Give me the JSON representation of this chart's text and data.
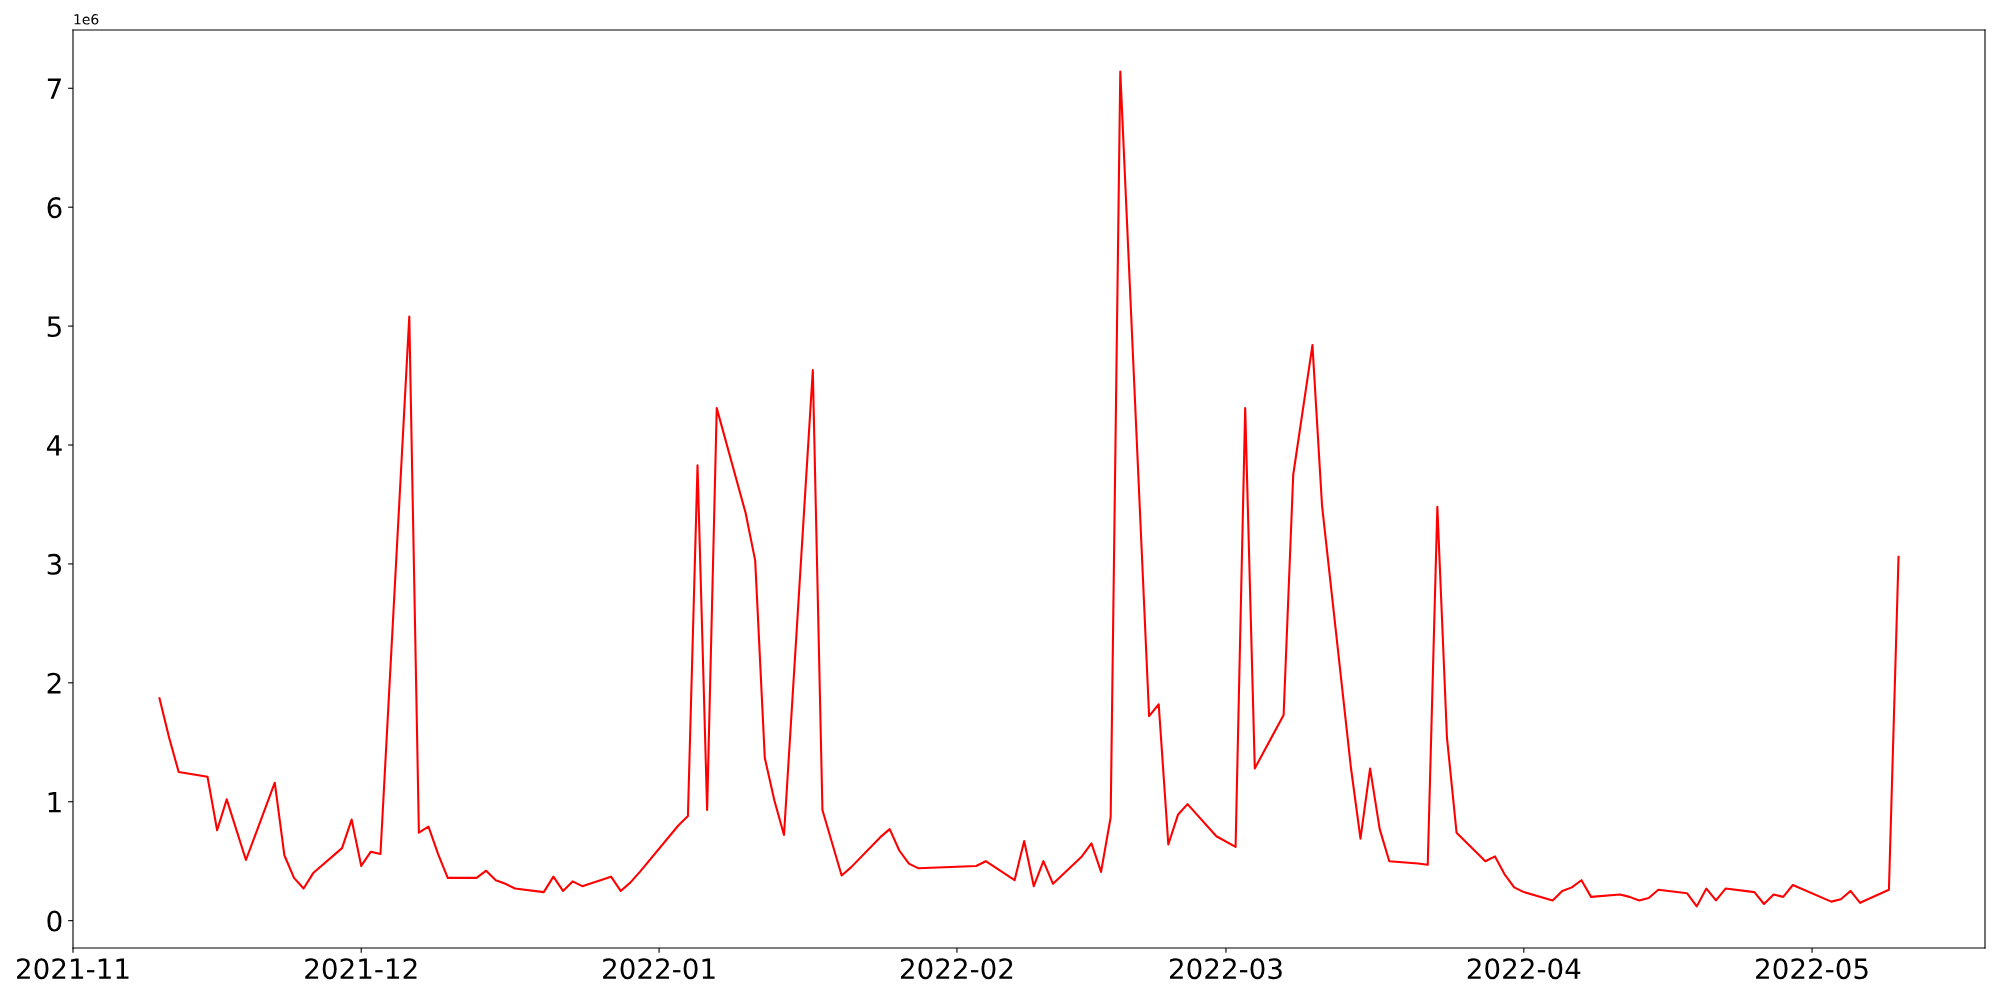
{
  "chart_data": {
    "type": "line",
    "annotations": [
      "1e6"
    ],
    "x": [
      "2021-11-10",
      "2021-11-11",
      "2021-11-12",
      "2021-11-15",
      "2021-11-16",
      "2021-11-17",
      "2021-11-19",
      "2021-11-22",
      "2021-11-23",
      "2021-11-24",
      "2021-11-25",
      "2021-11-26",
      "2021-11-29",
      "2021-11-30",
      "2021-12-01",
      "2021-12-02",
      "2021-12-03",
      "2021-12-06",
      "2021-12-07",
      "2021-12-08",
      "2021-12-09",
      "2021-12-10",
      "2021-12-13",
      "2021-12-14",
      "2021-12-15",
      "2021-12-16",
      "2021-12-17",
      "2021-12-20",
      "2021-12-21",
      "2021-12-22",
      "2021-12-23",
      "2021-12-24",
      "2021-12-27",
      "2021-12-28",
      "2021-12-29",
      "2021-12-30",
      "2022-01-03",
      "2022-01-04",
      "2022-01-05",
      "2022-01-06",
      "2022-01-07",
      "2022-01-10",
      "2022-01-11",
      "2022-01-12",
      "2022-01-13",
      "2022-01-14",
      "2022-01-17",
      "2022-01-18",
      "2022-01-20",
      "2022-01-21",
      "2022-01-24",
      "2022-01-25",
      "2022-01-26",
      "2022-01-27",
      "2022-01-28",
      "2022-02-03",
      "2022-02-04",
      "2022-02-07",
      "2022-02-08",
      "2022-02-09",
      "2022-02-10",
      "2022-02-11",
      "2022-02-14",
      "2022-02-15",
      "2022-02-16",
      "2022-02-17",
      "2022-02-18",
      "2022-02-21",
      "2022-02-22",
      "2022-02-23",
      "2022-02-24",
      "2022-02-25",
      "2022-02-28",
      "2022-03-02",
      "2022-03-03",
      "2022-03-04",
      "2022-03-07",
      "2022-03-08",
      "2022-03-10",
      "2022-03-11",
      "2022-03-14",
      "2022-03-15",
      "2022-03-16",
      "2022-03-17",
      "2022-03-18",
      "2022-03-21",
      "2022-03-22",
      "2022-03-23",
      "2022-03-24",
      "2022-03-25",
      "2022-03-28",
      "2022-03-29",
      "2022-03-30",
      "2022-03-31",
      "2022-04-01",
      "2022-04-04",
      "2022-04-05",
      "2022-04-06",
      "2022-04-07",
      "2022-04-08",
      "2022-04-11",
      "2022-04-12",
      "2022-04-13",
      "2022-04-14",
      "2022-04-15",
      "2022-04-18",
      "2022-04-19",
      "2022-04-20",
      "2022-04-21",
      "2022-04-22",
      "2022-04-25",
      "2022-04-26",
      "2022-04-27",
      "2022-04-28",
      "2022-04-29",
      "2022-05-03",
      "2022-05-04",
      "2022-05-05",
      "2022-05-06",
      "2022-05-09",
      "2022-05-10"
    ],
    "series": [
      {
        "color": "#ff0000",
        "values": [
          1.87,
          1.54,
          1.25,
          1.21,
          0.76,
          1.02,
          0.51,
          1.16,
          0.55,
          0.36,
          0.27,
          0.4,
          0.61,
          0.85,
          0.46,
          0.58,
          0.56,
          5.08,
          0.74,
          0.79,
          0.56,
          0.36,
          0.36,
          0.42,
          0.34,
          0.31,
          0.27,
          0.24,
          0.37,
          0.25,
          0.33,
          0.29,
          0.37,
          0.25,
          0.32,
          0.41,
          0.8,
          0.88,
          3.83,
          0.93,
          4.31,
          3.43,
          3.03,
          1.37,
          1.01,
          0.72,
          4.63,
          0.93,
          0.38,
          0.45,
          0.7,
          0.77,
          0.59,
          0.48,
          0.44,
          0.46,
          0.5,
          0.34,
          0.67,
          0.29,
          0.5,
          0.31,
          0.54,
          0.65,
          0.41,
          0.87,
          7.14,
          1.72,
          1.82,
          0.64,
          0.89,
          0.98,
          0.71,
          0.62,
          4.31,
          1.28,
          1.73,
          3.75,
          4.84,
          3.49,
          1.29,
          0.69,
          1.28,
          0.77,
          0.5,
          0.48,
          0.47,
          3.48,
          1.54,
          0.74,
          0.5,
          0.54,
          0.39,
          0.28,
          0.24,
          0.17,
          0.25,
          0.28,
          0.34,
          0.2,
          0.22,
          0.2,
          0.17,
          0.19,
          0.26,
          0.23,
          0.12,
          0.27,
          0.17,
          0.27,
          0.24,
          0.14,
          0.22,
          0.2,
          0.3,
          0.16,
          0.18,
          0.25,
          0.15,
          0.26,
          3.06
        ]
      }
    ],
    "xlim": [
      "2021-11-01",
      "2022-05-19"
    ],
    "xticks": [
      {
        "value": "2021-11-01",
        "label": "2021-11"
      },
      {
        "value": "2021-12-01",
        "label": "2021-12"
      },
      {
        "value": "2022-01-01",
        "label": "2022-01"
      },
      {
        "value": "2022-02-01",
        "label": "2022-02"
      },
      {
        "value": "2022-03-01",
        "label": "2022-03"
      },
      {
        "value": "2022-04-01",
        "label": "2022-04"
      },
      {
        "value": "2022-05-01",
        "label": "2022-05"
      }
    ],
    "ylim": [
      -0.23,
      7.49
    ],
    "yticks": [
      0,
      1,
      2,
      3,
      4,
      5,
      6,
      7
    ],
    "grid": false,
    "legend": false,
    "marker": "none",
    "line_style": "solid"
  }
}
